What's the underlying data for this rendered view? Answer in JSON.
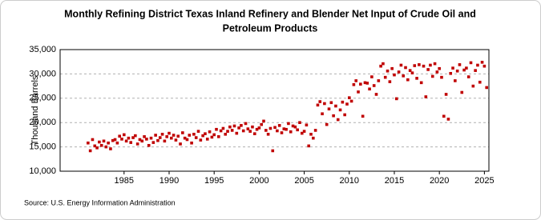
{
  "chart_data": {
    "type": "scatter",
    "title": [
      "Monthly Refining District Texas Inland Refinery and Blender Net Input of Crude Oil and",
      "Petroleum Products"
    ],
    "y_label": "Thousand Barrels",
    "source": "Source: U.S. Energy Information Administration",
    "color": "#c00000",
    "grid": true,
    "xlim": [
      1977.9,
      2025.5
    ],
    "ylim": [
      10000,
      35000
    ],
    "xticks": [
      1985,
      1990,
      1995,
      2000,
      2005,
      2010,
      2015,
      2020,
      2025
    ],
    "yticks": [
      {
        "value": 10000,
        "label": "10,000"
      },
      {
        "value": 15000,
        "label": "15,000"
      },
      {
        "value": 20000,
        "label": "20,000"
      },
      {
        "value": 25000,
        "label": "25,000"
      },
      {
        "value": 30000,
        "label": "30,000"
      },
      {
        "value": 35000,
        "label": "35,000"
      }
    ],
    "x": [
      1981,
      1981.25,
      1981.5,
      1981.75,
      1982,
      1982.25,
      1982.5,
      1982.75,
      1983,
      1983.25,
      1983.5,
      1983.75,
      1984,
      1984.25,
      1984.5,
      1984.75,
      1985,
      1985.25,
      1985.5,
      1985.75,
      1986,
      1986.25,
      1986.5,
      1986.75,
      1987,
      1987.25,
      1987.5,
      1987.75,
      1988,
      1988.25,
      1988.5,
      1988.75,
      1989,
      1989.25,
      1989.5,
      1989.75,
      1990,
      1990.25,
      1990.5,
      1990.75,
      1991,
      1991.25,
      1991.5,
      1991.75,
      1992,
      1992.25,
      1992.5,
      1992.75,
      1993,
      1993.25,
      1993.5,
      1993.75,
      1994,
      1994.25,
      1994.5,
      1994.75,
      1995,
      1995.25,
      1995.5,
      1995.75,
      1996,
      1996.25,
      1996.5,
      1996.75,
      1997,
      1997.25,
      1997.5,
      1997.75,
      1998,
      1998.25,
      1998.5,
      1998.75,
      1999,
      1999.25,
      1999.5,
      1999.75,
      2000,
      2000.25,
      2000.5,
      2000.75,
      2001,
      2001.25,
      2001.5,
      2001.75,
      2002,
      2002.25,
      2002.5,
      2002.75,
      2003,
      2003.25,
      2003.5,
      2003.75,
      2004,
      2004.25,
      2004.5,
      2004.75,
      2005,
      2005.25,
      2005.5,
      2005.75,
      2006,
      2006.25,
      2006.5,
      2006.75,
      2007,
      2007.25,
      2007.5,
      2007.75,
      2008,
      2008.25,
      2008.5,
      2008.75,
      2009,
      2009.25,
      2009.5,
      2009.75,
      2010,
      2010.25,
      2010.5,
      2010.75,
      2011,
      2011.25,
      2011.5,
      2011.75,
      2012,
      2012.25,
      2012.5,
      2012.75,
      2013,
      2013.25,
      2013.5,
      2013.75,
      2014,
      2014.25,
      2014.5,
      2014.75,
      2015,
      2015.25,
      2015.5,
      2015.75,
      2016,
      2016.25,
      2016.5,
      2016.75,
      2017,
      2017.25,
      2017.5,
      2017.75,
      2018,
      2018.25,
      2018.5,
      2018.75,
      2019,
      2019.25,
      2019.5,
      2019.75,
      2020,
      2020.25,
      2020.5,
      2020.75,
      2021,
      2021.25,
      2021.5,
      2021.75,
      2022,
      2022.25,
      2022.5,
      2022.75,
      2023,
      2023.25,
      2023.5,
      2023.75,
      2024,
      2024.25,
      2024.5,
      2024.75,
      2025,
      2025.25
    ],
    "values": [
      15800,
      14200,
      16500,
      15200,
      14800,
      16000,
      15300,
      16200,
      15000,
      15800,
      14600,
      16300,
      16500,
      15800,
      17200,
      16600,
      17500,
      16200,
      16800,
      15900,
      16900,
      17300,
      15600,
      16500,
      16200,
      17100,
      16600,
      15300,
      16800,
      15900,
      17400,
      16300,
      16900,
      17600,
      16200,
      17100,
      17800,
      16800,
      17400,
      16400,
      17200,
      15600,
      17900,
      16800,
      16500,
      17400,
      15800,
      17600,
      16900,
      18200,
      16400,
      17300,
      17700,
      16600,
      18100,
      17000,
      17500,
      18600,
      17100,
      18300,
      18800,
      17600,
      18200,
      19100,
      18400,
      19300,
      17800,
      18900,
      19400,
      18300,
      19800,
      18700,
      18200,
      19100,
      17700,
      18600,
      18900,
      19600,
      20300,
      18400,
      17600,
      18800,
      14200,
      19000,
      18300,
      19400,
      17900,
      18700,
      18600,
      19800,
      18100,
      19300,
      19100,
      18500,
      20000,
      17800,
      18200,
      19500,
      15200,
      17600,
      16800,
      18400,
      23600,
      24300,
      21800,
      23900,
      19600,
      22800,
      24100,
      21400,
      23400,
      20600,
      22600,
      24200,
      21600,
      23800,
      25100,
      24400,
      27800,
      28600,
      26300,
      27900,
      21300,
      28200,
      28100,
      26900,
      29400,
      27600,
      25800,
      28600,
      31600,
      32100,
      29300,
      30600,
      28400,
      31100,
      29800,
      24900,
      30400,
      31800,
      29600,
      31300,
      28800,
      30700,
      30200,
      31700,
      29100,
      31900,
      28200,
      31600,
      25300,
      30900,
      31800,
      29500,
      32100,
      30400,
      31100,
      29300,
      21300,
      25800,
      20700,
      30100,
      31200,
      28600,
      30600,
      31900,
      26200,
      30800,
      31200,
      29400,
      32300,
      27500,
      30700,
      31800,
      28300,
      32400,
      31600,
      27200
    ]
  }
}
